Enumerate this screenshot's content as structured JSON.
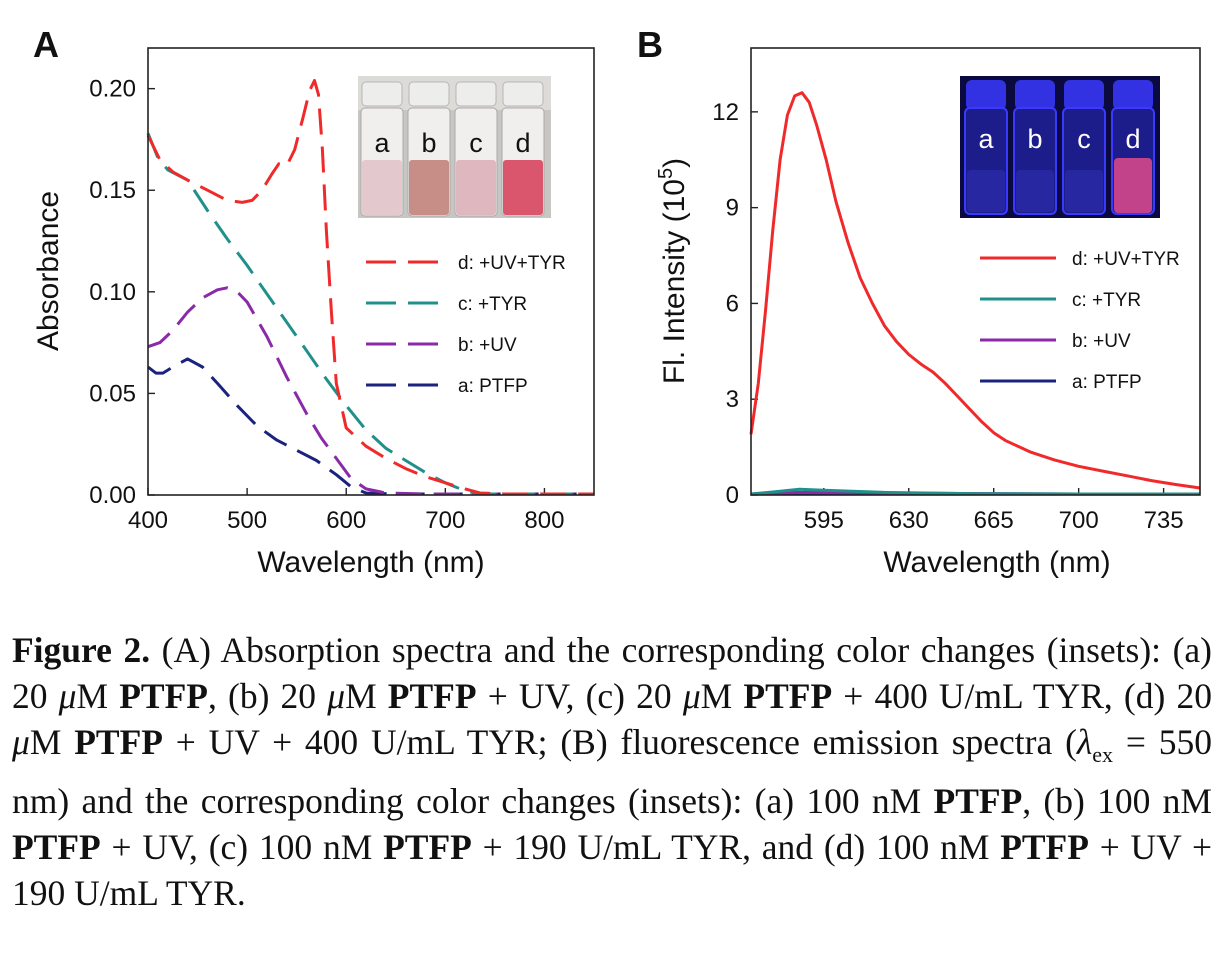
{
  "panels": {
    "A": {
      "letter": "A",
      "chart_data": {
        "type": "line",
        "xlabel": "Wavelength (nm)",
        "ylabel": "Absorbance",
        "xlim": [
          400,
          850
        ],
        "ylim": [
          0,
          0.22
        ],
        "x_ticks": [
          400,
          500,
          600,
          700,
          800
        ],
        "y_ticks": [
          "0.00",
          "0.05",
          "0.10",
          "0.15",
          "0.20"
        ],
        "line_style": "dashed",
        "legend_position": "right",
        "series": [
          {
            "name": "d: +UV+TYR",
            "color": "#f02a2a",
            "points": [
              [
                400,
                0.177
              ],
              [
                412,
                0.165
              ],
              [
                425,
                0.159
              ],
              [
                440,
                0.155
              ],
              [
                460,
                0.15
              ],
              [
                480,
                0.145
              ],
              [
                495,
                0.144
              ],
              [
                505,
                0.145
              ],
              [
                515,
                0.15
              ],
              [
                525,
                0.158
              ],
              [
                532,
                0.163
              ],
              [
                540,
                0.162
              ],
              [
                548,
                0.17
              ],
              [
                556,
                0.185
              ],
              [
                563,
                0.199
              ],
              [
                568,
                0.204
              ],
              [
                572,
                0.197
              ],
              [
                576,
                0.17
              ],
              [
                580,
                0.13
              ],
              [
                585,
                0.09
              ],
              [
                590,
                0.055
              ],
              [
                600,
                0.033
              ],
              [
                620,
                0.024
              ],
              [
                640,
                0.018
              ],
              [
                660,
                0.013
              ],
              [
                680,
                0.009
              ],
              [
                700,
                0.006
              ],
              [
                720,
                0.003
              ],
              [
                735,
                0.001
              ],
              [
                760,
                0.0005
              ],
              [
                800,
                0.0003
              ],
              [
                850,
                0.0002
              ]
            ]
          },
          {
            "name": "c: +TYR",
            "color": "#20908a",
            "points": [
              [
                400,
                0.178
              ],
              [
                410,
                0.166
              ],
              [
                420,
                0.16
              ],
              [
                432,
                0.157
              ],
              [
                440,
                0.155
              ],
              [
                460,
                0.14
              ],
              [
                480,
                0.126
              ],
              [
                500,
                0.113
              ],
              [
                520,
                0.099
              ],
              [
                540,
                0.085
              ],
              [
                560,
                0.071
              ],
              [
                580,
                0.057
              ],
              [
                600,
                0.044
              ],
              [
                620,
                0.032
              ],
              [
                640,
                0.023
              ],
              [
                660,
                0.017
              ],
              [
                680,
                0.011
              ],
              [
                700,
                0.006
              ],
              [
                720,
                0.002
              ],
              [
                735,
                0.0005
              ],
              [
                760,
                0.0003
              ],
              [
                800,
                0.0002
              ],
              [
                850,
                0.0001
              ]
            ]
          },
          {
            "name": "b: +UV",
            "color": "#8a2aa8",
            "points": [
              [
                400,
                0.073
              ],
              [
                412,
                0.075
              ],
              [
                425,
                0.081
              ],
              [
                440,
                0.09
              ],
              [
                455,
                0.097
              ],
              [
                470,
                0.101
              ],
              [
                480,
                0.102
              ],
              [
                490,
                0.1
              ],
              [
                500,
                0.095
              ],
              [
                520,
                0.078
              ],
              [
                540,
                0.058
              ],
              [
                560,
                0.04
              ],
              [
                575,
                0.028
              ],
              [
                590,
                0.018
              ],
              [
                605,
                0.008
              ],
              [
                620,
                0.003
              ],
              [
                640,
                0.001
              ],
              [
                680,
                0.0005
              ],
              [
                750,
                0.0002
              ],
              [
                850,
                0.0001
              ]
            ]
          },
          {
            "name": "a: PTFP",
            "color": "#1a237e",
            "points": [
              [
                400,
                0.063
              ],
              [
                408,
                0.06
              ],
              [
                415,
                0.06
              ],
              [
                425,
                0.063
              ],
              [
                440,
                0.067
              ],
              [
                455,
                0.063
              ],
              [
                470,
                0.055
              ],
              [
                490,
                0.044
              ],
              [
                510,
                0.034
              ],
              [
                530,
                0.027
              ],
              [
                550,
                0.022
              ],
              [
                570,
                0.017
              ],
              [
                590,
                0.01
              ],
              [
                605,
                0.004
              ],
              [
                620,
                0.001
              ],
              [
                650,
                0.0005
              ],
              [
                750,
                0.0002
              ],
              [
                850,
                0.0001
              ]
            ]
          }
        ]
      },
      "inset": {
        "vial_labels": [
          "a",
          "b",
          "c",
          "d"
        ],
        "vial_colors": [
          "#e3c9cd",
          "#c68e86",
          "#dfb8bf",
          "#d9566c"
        ],
        "background": "#c8c6c2"
      }
    },
    "B": {
      "letter": "B",
      "chart_data": {
        "type": "line",
        "xlabel": "Wavelength (nm)",
        "ylabel": "Fl. Intensity (10",
        "ylabel_sup": "5",
        "ylabel_tail": ")",
        "xlim": [
          565,
          750
        ],
        "ylim": [
          0,
          14
        ],
        "x_ticks": [
          595,
          630,
          665,
          700,
          735
        ],
        "y_ticks": [
          "0",
          "3",
          "6",
          "9",
          "12"
        ],
        "line_style": "solid",
        "legend_position": "right",
        "series": [
          {
            "name": "d: +UV+TYR",
            "color": "#f02a2a",
            "points": [
              [
                565,
                1.9
              ],
              [
                568,
                3.5
              ],
              [
                571,
                5.8
              ],
              [
                574,
                8.3
              ],
              [
                577,
                10.5
              ],
              [
                580,
                11.9
              ],
              [
                583,
                12.5
              ],
              [
                586,
                12.6
              ],
              [
                589,
                12.3
              ],
              [
                592,
                11.6
              ],
              [
                596,
                10.5
              ],
              [
                600,
                9.2
              ],
              [
                605,
                7.9
              ],
              [
                610,
                6.8
              ],
              [
                615,
                6.0
              ],
              [
                620,
                5.3
              ],
              [
                625,
                4.8
              ],
              [
                630,
                4.4
              ],
              [
                635,
                4.1
              ],
              [
                640,
                3.85
              ],
              [
                645,
                3.5
              ],
              [
                650,
                3.1
              ],
              [
                655,
                2.7
              ],
              [
                660,
                2.3
              ],
              [
                665,
                1.95
              ],
              [
                670,
                1.7
              ],
              [
                680,
                1.35
              ],
              [
                690,
                1.1
              ],
              [
                700,
                0.9
              ],
              [
                710,
                0.75
              ],
              [
                720,
                0.6
              ],
              [
                730,
                0.45
              ],
              [
                740,
                0.33
              ],
              [
                750,
                0.22
              ]
            ]
          },
          {
            "name": "c: +TYR",
            "color": "#20908a",
            "points": [
              [
                565,
                0.0
              ],
              [
                575,
                0.1
              ],
              [
                585,
                0.18
              ],
              [
                595,
                0.15
              ],
              [
                620,
                0.08
              ],
              [
                660,
                0.04
              ],
              [
                700,
                0.02
              ],
              [
                750,
                0.01
              ]
            ]
          },
          {
            "name": "b: +UV",
            "color": "#8a2aa8",
            "points": [
              [
                565,
                0.02
              ],
              [
                585,
                0.08
              ],
              [
                600,
                0.07
              ],
              [
                640,
                0.05
              ],
              [
                700,
                0.03
              ],
              [
                750,
                0.02
              ]
            ]
          },
          {
            "name": "a: PTFP",
            "color": "#1a237e",
            "points": [
              [
                565,
                0.0
              ],
              [
                585,
                0.04
              ],
              [
                620,
                0.03
              ],
              [
                700,
                0.02
              ],
              [
                750,
                0.01
              ]
            ]
          }
        ]
      },
      "inset": {
        "vial_labels": [
          "a",
          "b",
          "c",
          "d"
        ],
        "background": "#0a0a40",
        "glow_color": "#3a3aff",
        "highlight_color": "#e04a8a"
      }
    }
  },
  "caption": {
    "label": "Figure 2.",
    "segments": [
      {
        "t": " (A) Absorption spectra and the corresponding color changes (insets): (a) 20 ",
        "b": false
      },
      {
        "t": "μ",
        "i": true
      },
      {
        "t": "M ",
        "b": false
      },
      {
        "t": "PTFP",
        "b": true
      },
      {
        "t": ", (b) 20 ",
        "b": false
      },
      {
        "t": "μ",
        "i": true
      },
      {
        "t": "M ",
        "b": false
      },
      {
        "t": "PTFP",
        "b": true
      },
      {
        "t": " + UV, (c) 20 ",
        "b": false
      },
      {
        "t": "μ",
        "i": true
      },
      {
        "t": "M ",
        "b": false
      },
      {
        "t": "PTFP",
        "b": true
      },
      {
        "t": " + 400 U/mL TYR, (d) 20 ",
        "b": false
      },
      {
        "t": "μ",
        "i": true
      },
      {
        "t": "M ",
        "b": false
      },
      {
        "t": "PTFP",
        "b": true
      },
      {
        "t": " + UV + 400 U/mL TYR; (B) fluorescence emission spectra (",
        "b": false
      },
      {
        "t": "λ",
        "i": true
      },
      {
        "t": "ex",
        "sub": true
      },
      {
        "t": " = 550 nm) and the corresponding color changes (insets): (a) 100 nM ",
        "b": false
      },
      {
        "t": "PTFP",
        "b": true
      },
      {
        "t": ", (b) 100 nM ",
        "b": false
      },
      {
        "t": "PTFP",
        "b": true
      },
      {
        "t": " + UV, (c) 100 nM ",
        "b": false
      },
      {
        "t": "PTFP",
        "b": true
      },
      {
        "t": " + 190 U/mL TYR, and (d) 100 nM ",
        "b": false
      },
      {
        "t": "PTFP",
        "b": true
      },
      {
        "t": " + UV + 190 U/mL TYR.",
        "b": false
      }
    ]
  }
}
